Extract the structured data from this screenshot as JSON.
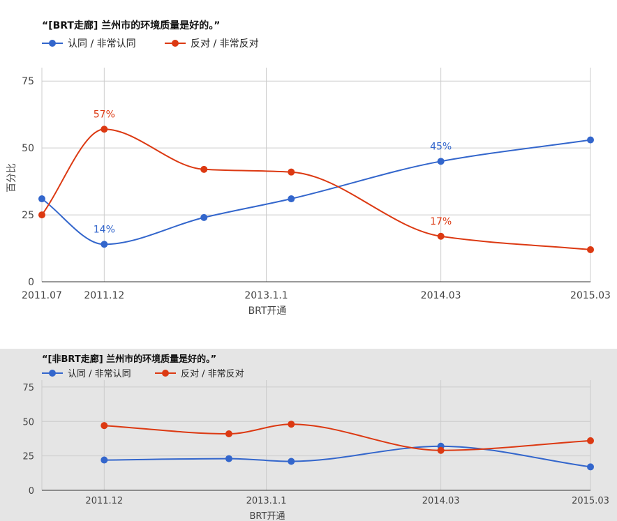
{
  "colors": {
    "series_a": "#3366cc",
    "series_b": "#dc3912",
    "grid": "#cccccc",
    "axis": "#333333"
  },
  "chart_data": [
    {
      "type": "line",
      "title": "“[BRT走廊] 兰州市的环境质量是好的。”",
      "xlabel": "BRT开通",
      "ylabel": "百分比",
      "ylim": [
        0,
        80
      ],
      "yticks": [
        0,
        25,
        50,
        75
      ],
      "curve": "smooth",
      "legend_position": "top",
      "grid": true,
      "x_tick_labels": [
        "2011.07",
        "2011.12",
        "2013.1.1",
        "2014.03",
        "2015.03"
      ],
      "series": [
        {
          "name": "认同 / 非常认同",
          "points": [
            [
              "2011.07",
              31
            ],
            [
              "2011.12",
              14
            ],
            [
              "2012.08",
              24
            ],
            [
              "2013.03",
              31
            ],
            [
              "2014.03",
              45
            ],
            [
              "2015.03",
              53
            ]
          ],
          "labels": {
            "2011.12": "14%",
            "2014.03": "45%"
          }
        },
        {
          "name": "反对 / 非常反对",
          "points": [
            [
              "2011.07",
              25
            ],
            [
              "2011.12",
              57
            ],
            [
              "2012.08",
              42
            ],
            [
              "2013.03",
              41
            ],
            [
              "2014.03",
              17
            ],
            [
              "2015.03",
              12
            ]
          ],
          "labels": {
            "2011.12": "57%",
            "2014.03": "17%"
          }
        }
      ]
    },
    {
      "type": "line",
      "title": "“[非BRT走廊] 兰州市的环境质量是好的。”",
      "xlabel": "BRT开通",
      "ylabel": "",
      "ylim": [
        0,
        80
      ],
      "yticks": [
        0,
        25,
        50,
        75
      ],
      "curve": "smooth",
      "legend_position": "top",
      "grid": true,
      "x_tick_labels": [
        "2011.12",
        "2013.1.1",
        "2014.03",
        "2015.03"
      ],
      "series": [
        {
          "name": "认同 / 非常认同",
          "points": [
            [
              "2011.12",
              22
            ],
            [
              "2012.10",
              23
            ],
            [
              "2013.03",
              21
            ],
            [
              "2014.03",
              32
            ],
            [
              "2015.03",
              17
            ]
          ],
          "labels": {}
        },
        {
          "name": "反对 / 非常反对",
          "points": [
            [
              "2011.12",
              47
            ],
            [
              "2012.10",
              41
            ],
            [
              "2013.03",
              48
            ],
            [
              "2014.03",
              29
            ],
            [
              "2015.03",
              36
            ]
          ],
          "labels": {}
        }
      ]
    }
  ]
}
